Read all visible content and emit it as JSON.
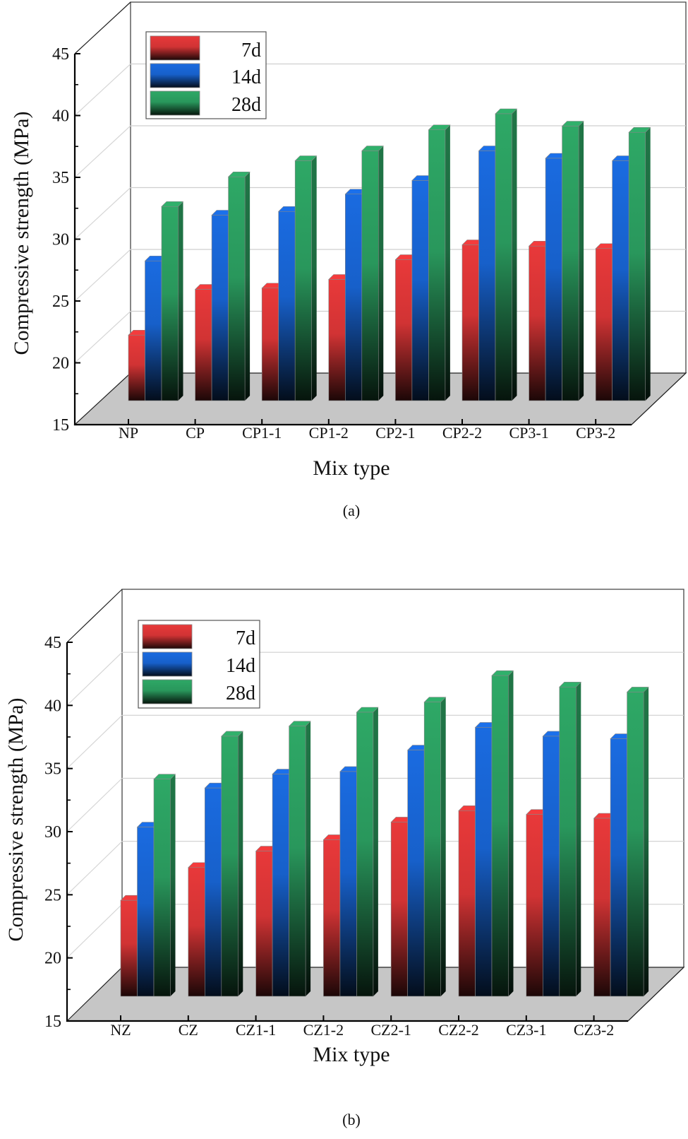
{
  "chart_data": [
    {
      "id": "a",
      "type": "bar",
      "style": "3d-grouped",
      "caption": "(a)",
      "title": "",
      "xlabel": "Mix type",
      "ylabel": "Compressive strength (MPa)",
      "ylim": [
        15,
        45
      ],
      "yticks": [
        "15",
        "20",
        "25",
        "30",
        "35",
        "40",
        "45"
      ],
      "grid": true,
      "legend_position": "top-left",
      "categories": [
        "NP",
        "CP",
        "CP1-1",
        "CP1-2",
        "CP2-1",
        "CP2-2",
        "CP3-1",
        "CP3-2"
      ],
      "series": [
        {
          "name": "7d",
          "color": "#e8393a",
          "values": [
            20.3,
            24.0,
            24.1,
            24.8,
            26.4,
            27.6,
            27.5,
            27.3
          ]
        },
        {
          "name": "14d",
          "color": "#1a6be0",
          "values": [
            26.3,
            30.0,
            30.3,
            31.7,
            32.8,
            35.2,
            34.6,
            34.4
          ]
        },
        {
          "name": "28d",
          "color": "#2ea866",
          "values": [
            30.7,
            33.1,
            34.4,
            35.2,
            36.9,
            38.2,
            37.2,
            36.7
          ]
        }
      ]
    },
    {
      "id": "b",
      "type": "bar",
      "style": "3d-grouped",
      "caption": "(b)",
      "title": "",
      "xlabel": "Mix type",
      "ylabel": "Compressive strength (MPa)",
      "ylim": [
        15,
        45
      ],
      "yticks": [
        "15",
        "20",
        "25",
        "30",
        "35",
        "40",
        "45"
      ],
      "grid": true,
      "legend_position": "top-left",
      "categories": [
        "NZ",
        "CZ",
        "CZ1-1",
        "CZ1-2",
        "CZ2-1",
        "CZ2-2",
        "CZ3-1",
        "CZ3-2"
      ],
      "series": [
        {
          "name": "7d",
          "color": "#e8393a",
          "values": [
            22.6,
            25.2,
            26.5,
            27.4,
            28.8,
            29.7,
            29.4,
            29.1
          ]
        },
        {
          "name": "14d",
          "color": "#1a6be0",
          "values": [
            28.4,
            31.5,
            32.6,
            32.8,
            34.5,
            36.3,
            35.6,
            35.4
          ]
        },
        {
          "name": "28d",
          "color": "#2ea866",
          "values": [
            32.2,
            35.6,
            36.4,
            37.5,
            38.3,
            40.4,
            39.5,
            39.1
          ]
        }
      ]
    }
  ]
}
